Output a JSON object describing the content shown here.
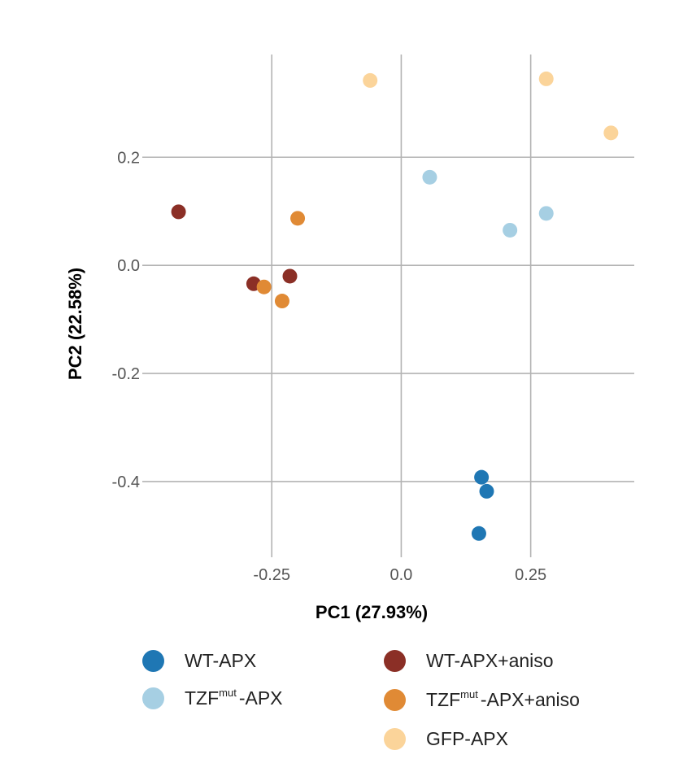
{
  "chart_data": {
    "type": "scatter",
    "xlabel": "PC1 (27.93%)",
    "ylabel": "PC2 (22.58%)",
    "xlim": [
      -0.5,
      0.45
    ],
    "ylim": [
      -0.54,
      0.39
    ],
    "xticks": [
      -0.25,
      0.0,
      0.25
    ],
    "xtick_labels": [
      "-0.25",
      "0.0",
      "0.25"
    ],
    "yticks": [
      0.2,
      0.0,
      -0.2,
      -0.4
    ],
    "ytick_labels": [
      "0.2",
      "0.0",
      "-0.2",
      "-0.4"
    ],
    "grid": true,
    "legend_position": "bottom",
    "series": [
      {
        "name": "WT-APX",
        "color": "#1f77b4",
        "points": [
          [
            0.155,
            -0.392
          ],
          [
            0.165,
            -0.418
          ],
          [
            0.15,
            -0.496
          ]
        ]
      },
      {
        "name": "TZF mut -APX",
        "color": "#a6cfe3",
        "points": [
          [
            0.055,
            0.163
          ],
          [
            0.21,
            0.065
          ],
          [
            0.28,
            0.096
          ]
        ]
      },
      {
        "name": "WT-APX+aniso",
        "color": "#8b2f26",
        "points": [
          [
            -0.43,
            0.099
          ],
          [
            -0.285,
            -0.034
          ],
          [
            -0.215,
            -0.02
          ]
        ]
      },
      {
        "name": "TZF mut -APX+aniso",
        "color": "#e08a35",
        "points": [
          [
            -0.265,
            -0.04
          ],
          [
            -0.23,
            -0.066
          ],
          [
            -0.2,
            0.087
          ]
        ]
      },
      {
        "name": "GFP-APX",
        "color": "#fbd49a",
        "points": [
          [
            -0.06,
            0.342
          ],
          [
            0.28,
            0.345
          ],
          [
            0.405,
            0.245
          ]
        ]
      }
    ]
  },
  "legend": [
    {
      "pre": "WT-APX",
      "sup": "",
      "post": ""
    },
    {
      "pre": "TZF",
      "sup": "mut",
      "post": "-APX"
    },
    {
      "pre": "WT-APX+aniso",
      "sup": "",
      "post": ""
    },
    {
      "pre": "TZF",
      "sup": "mut",
      "post": "-APX+aniso"
    },
    {
      "pre": "GFP-APX",
      "sup": "",
      "post": ""
    }
  ]
}
